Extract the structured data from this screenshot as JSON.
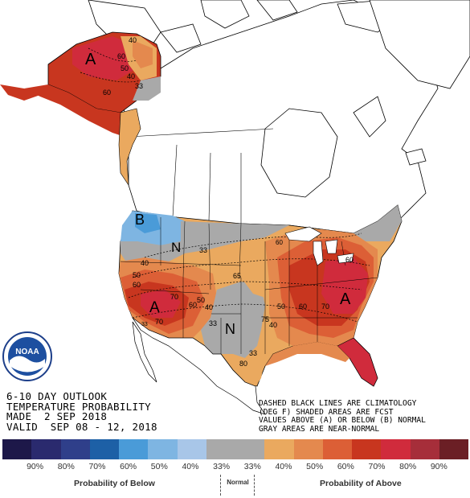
{
  "colors": {
    "below": [
      "#1d1849",
      "#2a2a6e",
      "#2f3f8a",
      "#1d60a6",
      "#4a9bd8",
      "#7eb5e2",
      "#a8c6e8"
    ],
    "normal": "#a9a9a9",
    "above": [
      "#eaa95f",
      "#e4894e",
      "#dc5f36",
      "#c8361f",
      "#d02b3c",
      "#a62e3a",
      "#6b1f25"
    ],
    "land": "#ffffff",
    "water": "#ffffff"
  },
  "title": {
    "line1": "6-10 DAY OUTLOOK",
    "line2": "TEMPERATURE PROBABILITY",
    "line3": "MADE  2 SEP 2018",
    "line4": "VALID  SEP 08 - 12, 2018"
  },
  "notes": {
    "line1": "DASHED BLACK LINES ARE CLIMATOLOGY",
    "line2": "(DEG F) SHADED AREAS ARE FCST",
    "line3": "VALUES ABOVE (A) OR BELOW (B) NORMAL",
    "line4": "GRAY AREAS ARE NEAR-NORMAL"
  },
  "map_labels": {
    "alaska_a": "A",
    "pnw_b": "B",
    "west_n": "N",
    "southwest_a": "A",
    "southeast_a": "A",
    "texas_n": "N",
    "ak_40": "40",
    "ak_60": "60",
    "ak_50": "50",
    "ak_33": "33",
    "ak_40b": "40",
    "ak_60b": "60",
    "west_40": "40",
    "west_50": "50",
    "west_60": "60",
    "west_70": "70",
    "west_70b": "70",
    "west_60b": "60",
    "west_50b": "50",
    "west_40b": "40",
    "west_33": "33",
    "west_33b": "33",
    "plains_65": "65",
    "plains_75": "75",
    "plains_80": "80",
    "tx_40": "40",
    "tx_33": "33",
    "east_60": "60",
    "east_50": "50",
    "east_60b": "60",
    "east_70": "70",
    "east_60c": "60",
    "west_33c": "33"
  },
  "legend": {
    "labels": [
      "90%",
      "80%",
      "70%",
      "60%",
      "50%",
      "40%",
      "33%",
      "33%",
      "40%",
      "50%",
      "60%",
      "70%",
      "80%",
      "90%"
    ],
    "below_title": "Probability of Below",
    "normal_title": "Normal",
    "above_title": "Probability of Above"
  },
  "logo": {
    "text": "NOAA"
  }
}
